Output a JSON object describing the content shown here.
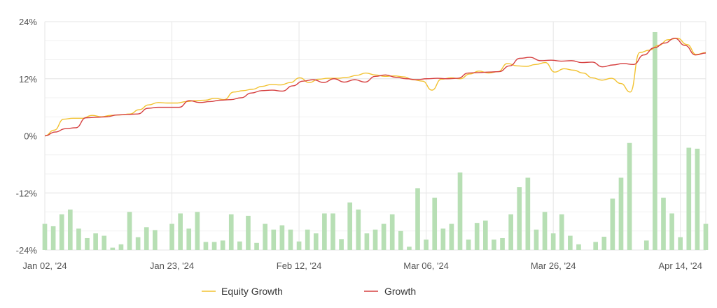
{
  "chart_data": {
    "type": "line",
    "title": "",
    "xlabel": "",
    "ylabel": "",
    "ylim": [
      -24,
      24
    ],
    "yticks": [
      "24%",
      "12%",
      "0%",
      "-12%",
      "-24%"
    ],
    "ytick_values": [
      24,
      12,
      0,
      -12,
      -24
    ],
    "xticks": [
      {
        "label": "Jan 02, '24",
        "index": 0
      },
      {
        "label": "Jan 23, '24",
        "index": 15
      },
      {
        "label": "Feb 12, '24",
        "index": 30
      },
      {
        "label": "Mar 06, '24",
        "index": 45
      },
      {
        "label": "Mar 26, '24",
        "index": 60
      },
      {
        "label": "Apr 14, '24",
        "index": 75
      }
    ],
    "grid": true,
    "legend_position": "bottom",
    "colors": {
      "equity": "#f2c230",
      "growth": "#d64040",
      "bars": "#b7dfb4",
      "grid": "#e6e6e6"
    },
    "legend": [
      {
        "label": "Equity Growth",
        "color": "#f2c230"
      },
      {
        "label": "Growth",
        "color": "#d64040"
      }
    ],
    "x_count": 79,
    "series": [
      {
        "kind": "line",
        "color": "#f2c230",
        "values": [
          0.0,
          1.2,
          3.5,
          3.7,
          3.7,
          4.3,
          4.0,
          4.3,
          4.4,
          4.6,
          5.5,
          6.5,
          7.0,
          6.9,
          6.9,
          7.2,
          7.4,
          7.5,
          7.9,
          7.6,
          9.2,
          9.5,
          9.8,
          10.4,
          10.8,
          10.7,
          11.2,
          12.2,
          11.2,
          11.9,
          12.1,
          12.1,
          12.3,
          12.7,
          13.2,
          12.8,
          12.5,
          12.6,
          12.4,
          11.8,
          11.5,
          9.6,
          11.9,
          12.2,
          12.0,
          13.0,
          13.6,
          13.2,
          13.5,
          15.2,
          14.7,
          14.6,
          15.0,
          15.4,
          13.4,
          14.1,
          13.8,
          13.2,
          12.2,
          11.7,
          12.1,
          11.0,
          9.2,
          17.5,
          18.0,
          19.0,
          20.2,
          20.5,
          19.2,
          17.1,
          17.5
        ],
        "x_start": 0
      },
      {
        "kind": "line",
        "color": "#d64040",
        "values": [
          0.0,
          0.8,
          1.5,
          1.7,
          3.8,
          3.9,
          4.0,
          4.4,
          4.5,
          4.6,
          5.8,
          6.0,
          6.0,
          6.0,
          7.4,
          7.0,
          7.2,
          7.5,
          7.6,
          8.0,
          9.0,
          9.5,
          9.6,
          9.4,
          10.5,
          11.5,
          11.8,
          11.2,
          12.0,
          11.3,
          11.8,
          11.3,
          12.5,
          12.8,
          12.3,
          12.0,
          11.8,
          12.0,
          12.1,
          12.0,
          12.1,
          13.2,
          13.3,
          13.4,
          13.5,
          14.7,
          16.3,
          16.5,
          15.8,
          15.9,
          15.7,
          15.8,
          15.4,
          15.5,
          14.5,
          14.9,
          15.2,
          15.0,
          17.0,
          18.5,
          19.5,
          20.5,
          19.0,
          17.0,
          17.4
        ],
        "x_start": 0
      }
    ],
    "bars": [
      -18.5,
      -19.0,
      -16.5,
      -15.5,
      -19.5,
      -21.5,
      -20.5,
      -21.0,
      -23.5,
      -22.8,
      -16.0,
      -21.3,
      -19.2,
      -19.8,
      -24.5,
      -18.5,
      -16.3,
      -19.5,
      -16.0,
      -22.3,
      -22.3,
      -22.0,
      -16.5,
      -22.2,
      -16.8,
      -22.5,
      -18.5,
      -19.7,
      -18.8,
      -19.7,
      -22.2,
      -19.7,
      -20.5,
      -16.3,
      -16.3,
      -21.7,
      -14.0,
      -15.5,
      -20.5,
      -19.7,
      -18.5,
      -16.5,
      -20.0,
      -23.3,
      -11.0,
      -21.8,
      -13.0,
      -19.5,
      -18.5,
      -7.7,
      -21.8,
      -18.3,
      -17.8,
      -21.8,
      -21.5,
      -16.5,
      -10.8,
      -8.8,
      -19.7,
      -16.0,
      -20.5,
      -16.5,
      -21.0,
      -22.8,
      -24.5,
      -22.3,
      -21.2,
      -13.2,
      -8.8,
      -1.5,
      -24.5,
      -22.0,
      21.8,
      -13.0,
      -16.3,
      -21.3,
      -2.5,
      -2.7,
      -18.5
    ]
  }
}
